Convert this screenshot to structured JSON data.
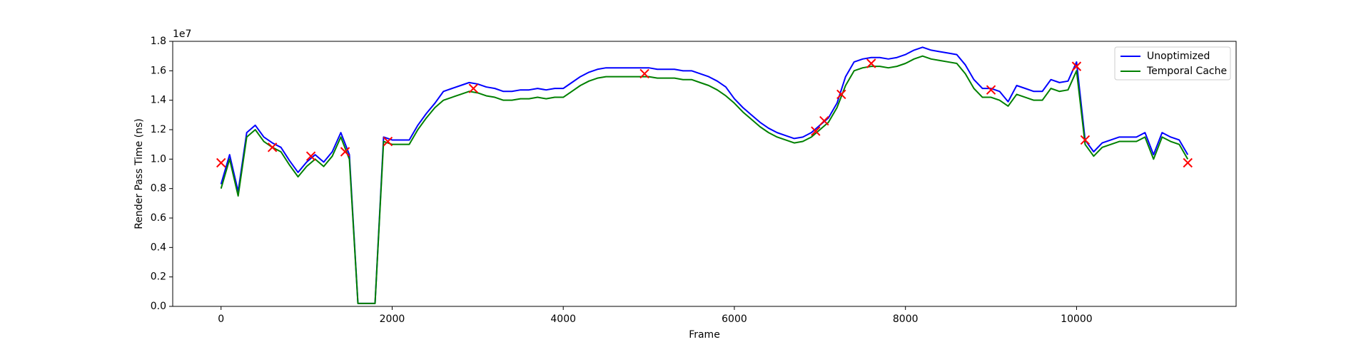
{
  "chart_data": {
    "type": "line",
    "xlabel": "Frame",
    "ylabel": "Render Pass Time (ns)",
    "y_offset_label": "1e7",
    "xlim": [
      -565,
      11865
    ],
    "xticks": [
      0,
      2000,
      4000,
      6000,
      8000,
      10000
    ],
    "ylim": [
      0,
      18000000
    ],
    "yticks": [
      {
        "value": 0,
        "label": "0.0"
      },
      {
        "value": 2000000,
        "label": "0.2"
      },
      {
        "value": 4000000,
        "label": "0.4"
      },
      {
        "value": 6000000,
        "label": "0.6"
      },
      {
        "value": 8000000,
        "label": "0.8"
      },
      {
        "value": 10000000,
        "label": "1.0"
      },
      {
        "value": 12000000,
        "label": "1.2"
      },
      {
        "value": 14000000,
        "label": "1.4"
      },
      {
        "value": 16000000,
        "label": "1.6"
      },
      {
        "value": 18000000,
        "label": "1.8"
      }
    ],
    "legend": "upper right",
    "x": [
      0,
      100,
      200,
      300,
      400,
      500,
      600,
      700,
      800,
      900,
      1000,
      1100,
      1200,
      1300,
      1400,
      1500,
      1600,
      1700,
      1800,
      1900,
      2000,
      2100,
      2200,
      2300,
      2400,
      2500,
      2600,
      2700,
      2800,
      2900,
      3000,
      3100,
      3200,
      3300,
      3400,
      3500,
      3600,
      3700,
      3800,
      3900,
      4000,
      4100,
      4200,
      4300,
      4400,
      4500,
      4600,
      4700,
      4800,
      4900,
      5000,
      5100,
      5200,
      5300,
      5400,
      5500,
      5600,
      5700,
      5800,
      5900,
      6000,
      6100,
      6200,
      6300,
      6400,
      6500,
      6600,
      6700,
      6800,
      6900,
      7000,
      7100,
      7200,
      7300,
      7400,
      7500,
      7600,
      7700,
      7800,
      7900,
      8000,
      8100,
      8200,
      8300,
      8400,
      8500,
      8600,
      8700,
      8800,
      8900,
      9000,
      9100,
      9200,
      9300,
      9400,
      9500,
      9600,
      9700,
      9800,
      9900,
      10000,
      10100,
      10200,
      10300,
      10400,
      10500,
      10600,
      10700,
      10800,
      10900,
      11000,
      11100,
      11200,
      11300
    ],
    "series": [
      {
        "name": "Unoptimized",
        "color": "#0000ff",
        "values": [
          8300000,
          10300000,
          7800000,
          11800000,
          12300000,
          11500000,
          11100000,
          10800000,
          9900000,
          9100000,
          9800000,
          10300000,
          9800000,
          10500000,
          11800000,
          10300000,
          200000,
          200000,
          200000,
          11500000,
          11300000,
          11300000,
          11300000,
          12300000,
          13100000,
          13800000,
          14600000,
          14800000,
          15000000,
          15200000,
          15100000,
          14900000,
          14800000,
          14600000,
          14600000,
          14700000,
          14700000,
          14800000,
          14700000,
          14800000,
          14800000,
          15200000,
          15600000,
          15900000,
          16100000,
          16200000,
          16200000,
          16200000,
          16200000,
          16200000,
          16200000,
          16100000,
          16100000,
          16100000,
          16000000,
          16000000,
          15800000,
          15600000,
          15300000,
          14900000,
          14100000,
          13500000,
          13000000,
          12500000,
          12100000,
          11800000,
          11600000,
          11400000,
          11500000,
          11800000,
          12300000,
          12800000,
          13800000,
          15600000,
          16600000,
          16800000,
          16900000,
          16900000,
          16800000,
          16900000,
          17100000,
          17400000,
          17600000,
          17400000,
          17300000,
          17200000,
          17100000,
          16400000,
          15400000,
          14800000,
          14800000,
          14600000,
          13900000,
          15000000,
          14800000,
          14600000,
          14600000,
          15400000,
          15200000,
          15300000,
          16600000,
          11300000,
          10500000,
          11100000,
          11300000,
          11500000,
          11500000,
          11500000,
          11800000,
          10300000,
          11800000,
          11500000,
          11300000,
          10300000
        ]
      },
      {
        "name": "Temporal Cache",
        "color": "#008000",
        "values": [
          8000000,
          10000000,
          7500000,
          11500000,
          12000000,
          11200000,
          10800000,
          10500000,
          9600000,
          8800000,
          9500000,
          10000000,
          9500000,
          10200000,
          11500000,
          10000000,
          200000,
          200000,
          200000,
          11200000,
          11000000,
          11000000,
          11000000,
          12000000,
          12800000,
          13500000,
          14000000,
          14200000,
          14400000,
          14600000,
          14500000,
          14300000,
          14200000,
          14000000,
          14000000,
          14100000,
          14100000,
          14200000,
          14100000,
          14200000,
          14200000,
          14600000,
          15000000,
          15300000,
          15500000,
          15600000,
          15600000,
          15600000,
          15600000,
          15600000,
          15600000,
          15500000,
          15500000,
          15500000,
          15400000,
          15400000,
          15200000,
          15000000,
          14700000,
          14300000,
          13800000,
          13200000,
          12700000,
          12200000,
          11800000,
          11500000,
          11300000,
          11100000,
          11200000,
          11500000,
          12000000,
          12500000,
          13500000,
          15000000,
          16000000,
          16200000,
          16300000,
          16300000,
          16200000,
          16300000,
          16500000,
          16800000,
          17000000,
          16800000,
          16700000,
          16600000,
          16500000,
          15800000,
          14800000,
          14200000,
          14200000,
          14000000,
          13600000,
          14400000,
          14200000,
          14000000,
          14000000,
          14800000,
          14600000,
          14700000,
          16000000,
          11000000,
          10200000,
          10800000,
          11000000,
          11200000,
          11200000,
          11200000,
          11500000,
          10000000,
          11500000,
          11200000,
          11000000,
          10000000
        ]
      }
    ],
    "markers": {
      "color": "#ff0000",
      "x": [
        0,
        600,
        1050,
        1450,
        1950,
        2950,
        4950,
        6950,
        7050,
        7250,
        7600,
        9000,
        10000,
        10100,
        11300
      ],
      "values": [
        9750000,
        10800000,
        10200000,
        10500000,
        11200000,
        14800000,
        15800000,
        11900000,
        12600000,
        14400000,
        16500000,
        14700000,
        16300000,
        11300000,
        9750000
      ]
    }
  }
}
